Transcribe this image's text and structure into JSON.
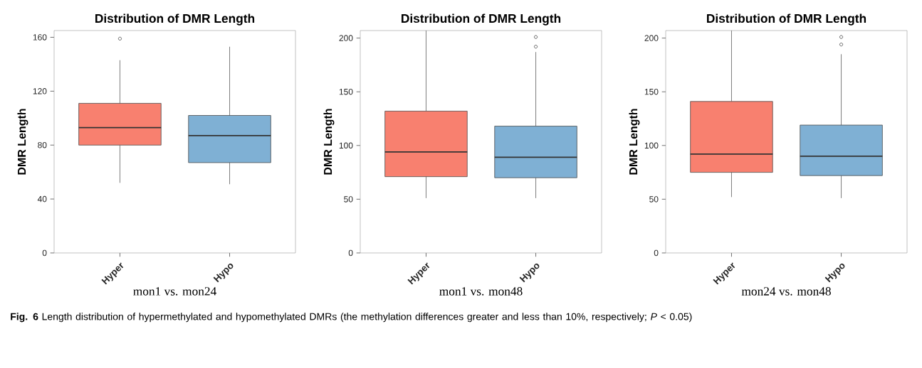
{
  "chart_data": [
    {
      "type": "box",
      "title": "Distribution of DMR Length",
      "ylabel": "DMR Length",
      "xlabel": "mon1 vs. mon24",
      "categories": [
        "Hyper",
        "Hypo"
      ],
      "colors": [
        "#f8806f",
        "#7fb0d4"
      ],
      "ylim": [
        0,
        165
      ],
      "yticks": [
        0,
        40,
        80,
        120,
        160
      ],
      "boxes": [
        {
          "low": 52,
          "q1": 80,
          "median": 93,
          "q3": 111,
          "high": 143,
          "outliers": [
            159
          ]
        },
        {
          "low": 51,
          "q1": 67,
          "median": 87,
          "q3": 102,
          "high": 153
        }
      ],
      "annotations": [
        "**Fig. 6** Length distribution of hypermethylated and hypomethylated DMRs (the methylation differences greater and less than 10%, respectively; *P* < 0.05)"
      ]
    },
    {
      "type": "box",
      "title": "Distribution of DMR Length",
      "ylabel": "DMR Length",
      "xlabel": "mon1 vs. mon48",
      "categories": [
        "Hyper",
        "Hypo"
      ],
      "colors": [
        "#f8806f",
        "#7fb0d4"
      ],
      "ylim": [
        0,
        207
      ],
      "yticks": [
        0,
        50,
        100,
        150,
        200
      ],
      "boxes": [
        {
          "low": 51,
          "q1": 71,
          "median": 94,
          "q3": 132,
          "high": 207
        },
        {
          "low": 51,
          "q1": 70,
          "median": 89,
          "q3": 118,
          "high": 187,
          "outliers": [
            192,
            201
          ]
        }
      ]
    },
    {
      "type": "box",
      "title": "Distribution of DMR Length",
      "ylabel": "DMR Length",
      "xlabel": "mon24 vs. mon48",
      "categories": [
        "Hyper",
        "Hypo"
      ],
      "colors": [
        "#f8806f",
        "#7fb0d4"
      ],
      "ylim": [
        0,
        207
      ],
      "yticks": [
        0,
        50,
        100,
        150,
        200
      ],
      "boxes": [
        {
          "low": 52,
          "q1": 75,
          "median": 92,
          "q3": 141,
          "high": 207
        },
        {
          "low": 51,
          "q1": 72,
          "median": 90,
          "q3": 119,
          "high": 185,
          "outliers": [
            194,
            201
          ]
        }
      ]
    }
  ]
}
